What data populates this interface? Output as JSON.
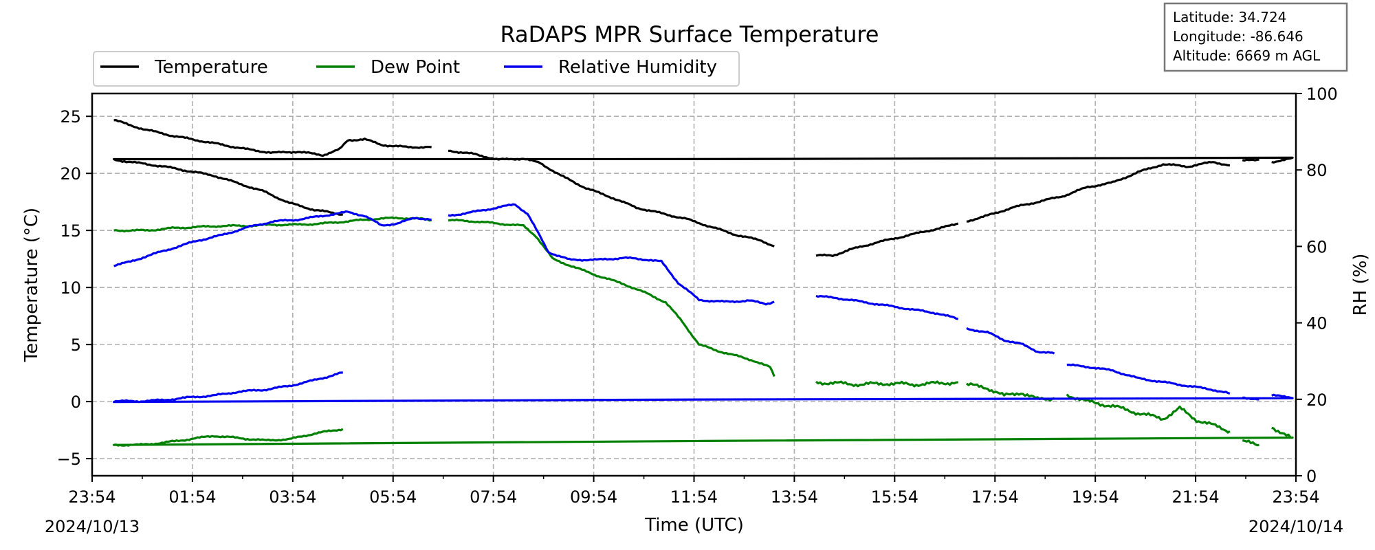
{
  "chart_data": {
    "type": "line",
    "title": "RaDAPS MPR Surface Temperature",
    "xlabel": "Time (UTC)",
    "ylabel": "Temperature (°C)",
    "y2label": "RH (%)",
    "ylim": [
      -6.5,
      27
    ],
    "y2lim": [
      0,
      100
    ],
    "yticks": [
      25,
      20,
      15,
      10,
      5,
      0,
      -5
    ],
    "ytick_labels": [
      "25",
      "20",
      "15",
      "10",
      "5",
      "0",
      "−5"
    ],
    "y2ticks": [
      100,
      80,
      60,
      40,
      20,
      0
    ],
    "y2tick_labels": [
      "100",
      "80",
      "60",
      "40",
      "20",
      "0"
    ],
    "xlim": [
      "2024-10-13 23:54",
      "2024-10-14 23:54"
    ],
    "xtick_labels": [
      "23:54",
      "01:54",
      "03:54",
      "05:54",
      "07:54",
      "09:54",
      "11:54",
      "13:54",
      "15:54",
      "17:54",
      "19:54",
      "21:54",
      "23:54"
    ],
    "date_labels": [
      "2024/10/13",
      "2024/10/14"
    ],
    "grid": true,
    "legend_position": "top-left",
    "station_info": [
      "Latitude: 34.724",
      "Longitude: -86.646",
      "Altitude: 6669 m AGL"
    ],
    "series": [
      {
        "name": "Temperature",
        "color": "#000000",
        "axis": "left",
        "segments": [
          [
            [
              "00:20",
              24.7
            ],
            [
              "00:40",
              24.2
            ],
            [
              "01:00",
              23.8
            ],
            [
              "01:30",
              23.3
            ],
            [
              "02:00",
              22.9
            ],
            [
              "02:30",
              22.5
            ],
            [
              "03:00",
              22.1
            ],
            [
              "03:30",
              21.8
            ],
            [
              "04:00",
              21.9
            ],
            [
              "04:30",
              21.6
            ],
            [
              "04:50",
              22.1
            ],
            [
              "05:00",
              22.9
            ],
            [
              "05:20",
              23.0
            ],
            [
              "05:40",
              22.5
            ],
            [
              "06:10",
              22.3
            ],
            [
              "06:40",
              22.3
            ]
          ],
          [
            [
              "07:00",
              22.0
            ],
            [
              "07:30",
              21.7
            ],
            [
              "08:00",
              21.2
            ],
            [
              "08:30",
              21.3
            ],
            [
              "08:50",
              20.9
            ],
            [
              "09:15",
              19.8
            ],
            [
              "09:45",
              18.7
            ],
            [
              "10:15",
              17.9
            ],
            [
              "10:45",
              17.0
            ],
            [
              "11:15",
              16.5
            ],
            [
              "11:45",
              16.0
            ],
            [
              "12:15",
              15.3
            ],
            [
              "12:45",
              14.6
            ],
            [
              "13:15",
              14.1
            ],
            [
              "13:30",
              13.6
            ]
          ],
          [
            [
              "14:20",
              12.8
            ],
            [
              "14:40",
              12.8
            ],
            [
              "15:00",
              13.3
            ],
            [
              "15:30",
              13.9
            ],
            [
              "16:00",
              14.4
            ],
            [
              "16:30",
              14.9
            ],
            [
              "17:00",
              15.4
            ],
            [
              "17:10",
              15.6
            ]
          ],
          [
            [
              "17:20",
              15.8
            ],
            [
              "17:45",
              16.3
            ],
            [
              "18:15",
              17.0
            ],
            [
              "18:45",
              17.5
            ],
            [
              "19:15",
              18.0
            ],
            [
              "19:45",
              18.8
            ],
            [
              "20:15",
              19.2
            ],
            [
              "20:45",
              20.1
            ],
            [
              "21:15",
              20.8
            ],
            [
              "21:45",
              20.6
            ],
            [
              "22:15",
              21.0
            ],
            [
              "22:35",
              20.7
            ]
          ],
          [
            [
              "22:50",
              21.1
            ],
            [
              "23:10",
              21.2
            ]
          ],
          [
            [
              "23:25",
              21.0
            ],
            [
              "23:50",
              21.3
            ],
            [
              "00:20",
              21.2
            ],
            [
              "00:50",
              20.9
            ],
            [
              "01:20",
              20.6
            ],
            [
              "01:50",
              20.2
            ],
            [
              "02:20",
              19.8
            ],
            [
              "02:50",
              19.1
            ],
            [
              "03:20",
              18.4
            ],
            [
              "03:50",
              17.4
            ],
            [
              "04:20",
              16.8
            ],
            [
              "04:54",
              16.4
            ]
          ]
        ]
      },
      {
        "name": "Dew Point",
        "color": "#008000",
        "axis": "left",
        "segments": [
          [
            [
              "00:20",
              15.0
            ],
            [
              "01:00",
              15.0
            ],
            [
              "01:30",
              15.2
            ],
            [
              "02:00",
              15.3
            ],
            [
              "02:30",
              15.4
            ],
            [
              "03:00",
              15.4
            ],
            [
              "03:30",
              15.5
            ],
            [
              "04:00",
              15.5
            ],
            [
              "04:30",
              15.6
            ],
            [
              "05:00",
              15.8
            ],
            [
              "05:30",
              16.0
            ],
            [
              "06:00",
              16.1
            ],
            [
              "06:30",
              16.0
            ],
            [
              "06:40",
              15.9
            ]
          ],
          [
            [
              "07:00",
              15.9
            ],
            [
              "07:30",
              15.8
            ],
            [
              "08:00",
              15.6
            ],
            [
              "08:30",
              15.4
            ],
            [
              "08:45",
              14.5
            ],
            [
              "09:05",
              12.5
            ],
            [
              "09:30",
              11.8
            ],
            [
              "10:00",
              11.0
            ],
            [
              "10:30",
              10.3
            ],
            [
              "11:00",
              9.4
            ],
            [
              "11:20",
              8.7
            ],
            [
              "11:40",
              7.0
            ],
            [
              "12:00",
              5.0
            ],
            [
              "12:20",
              4.5
            ],
            [
              "12:45",
              4.0
            ],
            [
              "13:05",
              3.6
            ],
            [
              "13:25",
              3.0
            ],
            [
              "13:30",
              2.2
            ]
          ],
          [
            [
              "14:20",
              1.7
            ],
            [
              "14:45",
              1.6
            ],
            [
              "15:15",
              1.5
            ],
            [
              "15:45",
              1.6
            ],
            [
              "16:15",
              1.5
            ],
            [
              "16:45",
              1.6
            ],
            [
              "17:10",
              1.7
            ]
          ],
          [
            [
              "17:20",
              1.5
            ],
            [
              "17:45",
              1.2
            ],
            [
              "18:05",
              0.5
            ],
            [
              "18:25",
              0.8
            ],
            [
              "18:45",
              0.2
            ],
            [
              "19:05",
              0.3
            ]
          ],
          [
            [
              "19:20",
              0.6
            ],
            [
              "19:45",
              0.0
            ],
            [
              "20:15",
              -0.4
            ],
            [
              "20:45",
              -1.0
            ],
            [
              "21:15",
              -1.5
            ],
            [
              "21:35",
              -0.6
            ],
            [
              "21:55",
              -1.6
            ],
            [
              "22:20",
              -2.2
            ],
            [
              "22:35",
              -2.6
            ]
          ],
          [
            [
              "22:50",
              -3.5
            ],
            [
              "23:10",
              -3.8
            ]
          ],
          [
            [
              "23:25",
              -2.2
            ],
            [
              "23:50",
              -3.3
            ],
            [
              "00:20",
              -3.8
            ],
            [
              "00:50",
              -3.8
            ],
            [
              "01:20",
              -3.6
            ],
            [
              "01:50",
              -3.3
            ],
            [
              "02:20",
              -3.0
            ],
            [
              "02:50",
              -3.2
            ],
            [
              "03:20",
              -3.4
            ],
            [
              "03:50",
              -3.3
            ],
            [
              "04:20",
              -2.8
            ],
            [
              "04:54",
              -2.4
            ]
          ]
        ]
      },
      {
        "name": "Relative Humidity",
        "color": "#0000ee",
        "axis": "right",
        "segments": [
          [
            [
              "00:20",
              55.0
            ],
            [
              "00:40",
              56.0
            ],
            [
              "01:00",
              57.5
            ],
            [
              "01:30",
              59.5
            ],
            [
              "02:00",
              61.5
            ],
            [
              "02:30",
              63.0
            ],
            [
              "03:00",
              65.0
            ],
            [
              "03:30",
              66.5
            ],
            [
              "04:00",
              67.0
            ],
            [
              "04:30",
              68.0
            ],
            [
              "05:00",
              69.0
            ],
            [
              "05:20",
              68.0
            ],
            [
              "05:40",
              65.5
            ],
            [
              "06:00",
              66.0
            ],
            [
              "06:20",
              67.5
            ],
            [
              "06:40",
              67.0
            ]
          ],
          [
            [
              "07:00",
              68.0
            ],
            [
              "07:30",
              69.0
            ],
            [
              "07:55",
              70.0
            ],
            [
              "08:20",
              71.0
            ],
            [
              "08:35",
              68.5
            ],
            [
              "09:00",
              58.5
            ],
            [
              "09:25",
              56.5
            ],
            [
              "10:00",
              56.5
            ],
            [
              "10:30",
              57.0
            ],
            [
              "11:00",
              56.5
            ],
            [
              "11:15",
              56.0
            ],
            [
              "11:35",
              50.5
            ],
            [
              "12:00",
              46.0
            ],
            [
              "12:30",
              45.5
            ],
            [
              "13:00",
              45.8
            ],
            [
              "13:20",
              45.0
            ],
            [
              "13:30",
              45.5
            ]
          ],
          [
            [
              "14:20",
              47.0
            ],
            [
              "14:45",
              46.5
            ],
            [
              "15:15",
              45.5
            ],
            [
              "15:45",
              44.5
            ],
            [
              "16:15",
              43.5
            ],
            [
              "16:45",
              42.5
            ],
            [
              "17:10",
              41.0
            ]
          ],
          [
            [
              "17:20",
              38.5
            ],
            [
              "17:45",
              37.5
            ],
            [
              "18:05",
              35.5
            ],
            [
              "18:25",
              34.5
            ],
            [
              "18:45",
              32.5
            ],
            [
              "19:05",
              32.0
            ]
          ],
          [
            [
              "19:20",
              29.0
            ],
            [
              "19:45",
              28.5
            ],
            [
              "20:15",
              27.5
            ],
            [
              "20:45",
              25.5
            ],
            [
              "21:15",
              24.5
            ],
            [
              "21:45",
              23.5
            ],
            [
              "22:15",
              22.5
            ],
            [
              "22:35",
              21.5
            ]
          ],
          [
            [
              "22:50",
              20.5
            ],
            [
              "23:10",
              20.0
            ]
          ],
          [
            [
              "23:25",
              21.0
            ],
            [
              "23:50",
              20.5
            ],
            [
              "00:20",
              19.5
            ],
            [
              "00:50",
              19.5
            ],
            [
              "01:20",
              19.8
            ],
            [
              "01:50",
              20.5
            ],
            [
              "02:20",
              21.0
            ],
            [
              "02:50",
              22.0
            ],
            [
              "03:20",
              22.5
            ],
            [
              "03:50",
              23.5
            ],
            [
              "04:20",
              25.0
            ],
            [
              "04:54",
              27.0
            ]
          ]
        ]
      }
    ]
  }
}
